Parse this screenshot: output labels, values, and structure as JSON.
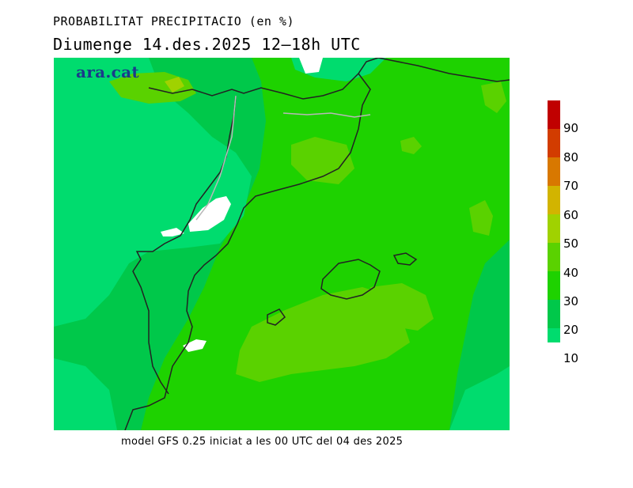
{
  "header": {
    "title": "PROBABILITAT PRECIPITACIO (en %)",
    "subtitle": "Diumenge  14.des.2025 12—18h UTC"
  },
  "map": {
    "logo": "ara.cat",
    "colors": {
      "p10": "#00dc6e",
      "p20": "#00c84a",
      "p30": "#1ed200",
      "p40": "#5ad200",
      "p50": "#a0d200"
    }
  },
  "legend": {
    "labels": [
      "90",
      "80",
      "70",
      "60",
      "50",
      "40",
      "30",
      "20",
      "10"
    ],
    "colors": [
      "#c00000",
      "#d23c00",
      "#d87800",
      "#d2b400",
      "#a0d200",
      "#5ad200",
      "#1ed200",
      "#00c84a",
      "#00dc6e"
    ]
  },
  "footer": {
    "text": "model GFS 0.25 iniciat a les 00 UTC del 04 des 2025"
  }
}
